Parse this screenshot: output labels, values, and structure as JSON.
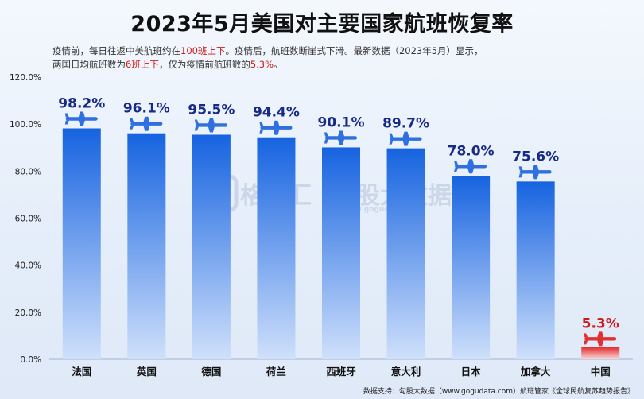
{
  "title": "2023年5月美国对主要国家航班恢复率",
  "subtitle": {
    "line1": [
      "疫情前，每日往返中美航班约在",
      "100班上下",
      "。疫情后，航班数断崖式下滑。最新数据（2023年5月）显示，"
    ],
    "line2": [
      "两国日均航班数为",
      "6班上下",
      "，仅为疫情前航班数的",
      "5.3%",
      "。"
    ]
  },
  "watermark": {
    "logo_text": "格隆汇",
    "text2": "勾股大数据",
    "url": "www.gogudata.com"
  },
  "footer": "数据支持：勾股大数据（www.gogudata.com）航班管家《全球民航复苏趋势报告》",
  "colors": {
    "bar_top": "#1663e0",
    "bar_bottom": "#cfe0fb",
    "highlight_top": "#e02828",
    "highlight_bottom": "#fbdada",
    "label": "#172a86",
    "highlight_label": "#d11a1a",
    "plane": "#2f6fe0",
    "plane_highlight": "#e23030"
  },
  "chart_data": {
    "type": "bar",
    "title": "2023年5月美国对主要国家航班恢复率",
    "categories": [
      "法国",
      "英国",
      "德国",
      "荷兰",
      "西班牙",
      "意大利",
      "日本",
      "加拿大",
      "中国"
    ],
    "values": [
      98.2,
      96.1,
      95.5,
      94.4,
      90.1,
      89.7,
      78.0,
      75.6,
      5.3
    ],
    "data_labels": [
      "98.2%",
      "96.1%",
      "95.5%",
      "94.4%",
      "90.1%",
      "89.7%",
      "78.0%",
      "75.6%",
      "5.3%"
    ],
    "highlight_index": 8,
    "ylim": [
      0,
      120
    ],
    "yticks": [
      0,
      20,
      40,
      60,
      80,
      100,
      120
    ],
    "ytick_labels": [
      "0.0%",
      "20.0%",
      "40.0%",
      "60.0%",
      "80.0%",
      "100.0%",
      "120.0%"
    ],
    "xlabel": "",
    "ylabel": "",
    "grid": false
  }
}
